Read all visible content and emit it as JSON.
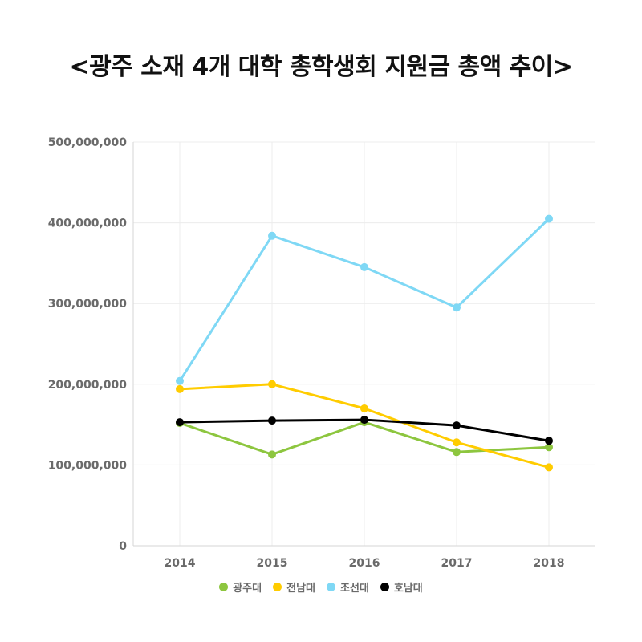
{
  "chart_data": {
    "type": "line",
    "title": "<광주 소재 4개 대학 총학생회 지원금 총액 추이>",
    "xlabel": "",
    "ylabel": "",
    "categories": [
      "2014",
      "2015",
      "2016",
      "2017",
      "2018"
    ],
    "ylim": [
      0,
      500000000
    ],
    "yticks": [
      0,
      100000000,
      200000000,
      300000000,
      400000000,
      500000000
    ],
    "ytick_labels": [
      "0",
      "100,000,000",
      "200,000,000",
      "300,000,000",
      "400,000,000",
      "500,000,000"
    ],
    "grid": true,
    "legend_position": "bottom",
    "series": [
      {
        "name": "광주대",
        "color": "#8dc63f",
        "values": [
          152000000,
          113000000,
          153000000,
          116000000,
          122000000
        ]
      },
      {
        "name": "전남대",
        "color": "#ffcc00",
        "values": [
          194000000,
          200000000,
          170000000,
          128000000,
          97000000
        ]
      },
      {
        "name": "조선대",
        "color": "#7fd8f5",
        "values": [
          204000000,
          384000000,
          345000000,
          295000000,
          405000000
        ]
      },
      {
        "name": "호남대",
        "color": "#000000",
        "values": [
          153000000,
          155000000,
          156000000,
          149000000,
          130000000
        ]
      }
    ]
  }
}
